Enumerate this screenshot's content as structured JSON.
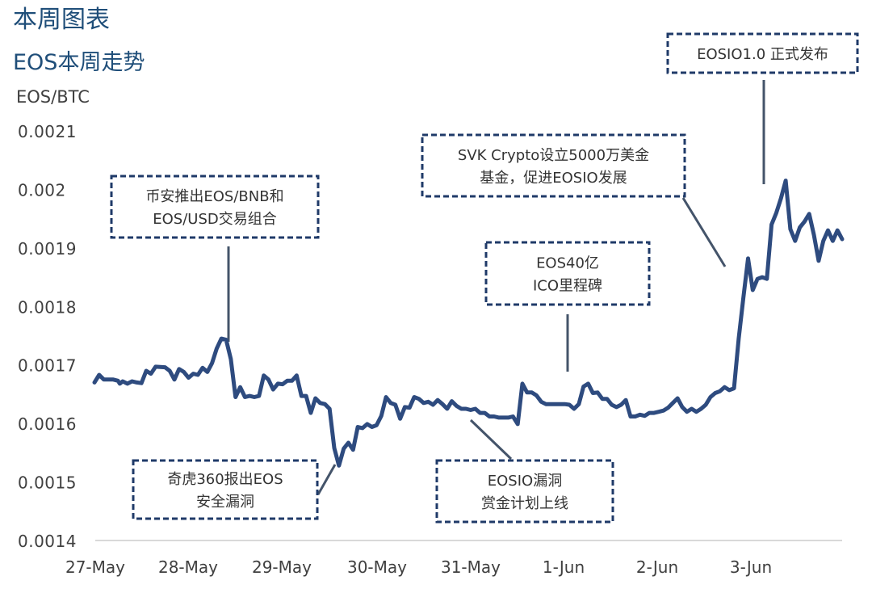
{
  "page": {
    "title": "本周图表",
    "subtitle": "EOS本周走势"
  },
  "chart_data": {
    "type": "line",
    "title": "EOS本周走势",
    "ylabel": "EOS/BTC",
    "xlabel": "",
    "ylim": [
      0.0014,
      0.0021
    ],
    "ytick_labels": [
      "0.0014",
      "0.0015",
      "0.0016",
      "0.0017",
      "0.0018",
      "0.0019",
      "0.002",
      "0.0021"
    ],
    "yticks": [
      0.0014,
      0.0015,
      0.0016,
      0.0017,
      0.0018,
      0.0019,
      0.002,
      0.0021
    ],
    "x_tick_labels": [
      "27-May",
      "28-May",
      "29-May",
      "30-May",
      "31-May",
      "1-Jun",
      "2-Jun",
      "3-Jun"
    ],
    "xlim": [
      27.0,
      34.95
    ],
    "x_unit": "day (27 = 27-May, 32 = 1-Jun)",
    "grid": false,
    "series": [
      {
        "color": "#2e4b7f",
        "points": [
          [
            27.0,
            0.00167
          ],
          [
            27.05,
            0.001683
          ],
          [
            27.1,
            0.001675
          ],
          [
            27.2,
            0.001675
          ],
          [
            27.25,
            0.001673
          ],
          [
            27.27,
            0.001668
          ],
          [
            27.3,
            0.001672
          ],
          [
            27.35,
            0.001668
          ],
          [
            27.4,
            0.001672
          ],
          [
            27.45,
            0.00167
          ],
          [
            27.5,
            0.001669
          ],
          [
            27.55,
            0.00169
          ],
          [
            27.6,
            0.001685
          ],
          [
            27.65,
            0.001697
          ],
          [
            27.75,
            0.001696
          ],
          [
            27.8,
            0.00169
          ],
          [
            27.85,
            0.001675
          ],
          [
            27.9,
            0.001693
          ],
          [
            27.95,
            0.001688
          ],
          [
            28.0,
            0.001678
          ],
          [
            28.05,
            0.001685
          ],
          [
            28.1,
            0.001683
          ],
          [
            28.15,
            0.001695
          ],
          [
            28.2,
            0.001688
          ],
          [
            28.25,
            0.001703
          ],
          [
            28.3,
            0.001728
          ],
          [
            28.35,
            0.001745
          ],
          [
            28.4,
            0.001743
          ],
          [
            28.45,
            0.00171
          ],
          [
            28.5,
            0.001645
          ],
          [
            28.55,
            0.001662
          ],
          [
            28.6,
            0.001645
          ],
          [
            28.65,
            0.001647
          ],
          [
            28.7,
            0.001645
          ],
          [
            28.75,
            0.001647
          ],
          [
            28.8,
            0.001682
          ],
          [
            28.85,
            0.001675
          ],
          [
            28.9,
            0.001658
          ],
          [
            28.95,
            0.001668
          ],
          [
            29.0,
            0.001667
          ],
          [
            29.05,
            0.001673
          ],
          [
            29.1,
            0.001673
          ],
          [
            29.15,
            0.001682
          ],
          [
            29.2,
            0.001647
          ],
          [
            29.25,
            0.001647
          ],
          [
            29.3,
            0.001618
          ],
          [
            29.35,
            0.001643
          ],
          [
            29.4,
            0.001635
          ],
          [
            29.45,
            0.001633
          ],
          [
            29.5,
            0.001625
          ],
          [
            29.55,
            0.001558
          ],
          [
            29.6,
            0.001528
          ],
          [
            29.65,
            0.001557
          ],
          [
            29.7,
            0.001567
          ],
          [
            29.75,
            0.001555
          ],
          [
            29.8,
            0.001594
          ],
          [
            29.85,
            0.001592
          ],
          [
            29.9,
            0.001599
          ],
          [
            29.95,
            0.001594
          ],
          [
            30.0,
            0.001597
          ],
          [
            30.05,
            0.001613
          ],
          [
            30.1,
            0.001645
          ],
          [
            30.15,
            0.001635
          ],
          [
            30.2,
            0.001632
          ],
          [
            30.25,
            0.001608
          ],
          [
            30.3,
            0.001628
          ],
          [
            30.35,
            0.001627
          ],
          [
            30.4,
            0.001645
          ],
          [
            30.45,
            0.001642
          ],
          [
            30.5,
            0.001635
          ],
          [
            30.55,
            0.001637
          ],
          [
            30.6,
            0.001632
          ],
          [
            30.65,
            0.00164
          ],
          [
            30.7,
            0.001633
          ],
          [
            30.75,
            0.001625
          ],
          [
            30.8,
            0.001638
          ],
          [
            30.85,
            0.00163
          ],
          [
            30.9,
            0.001625
          ],
          [
            30.95,
            0.001625
          ],
          [
            31.0,
            0.001623
          ],
          [
            31.05,
            0.001625
          ],
          [
            31.1,
            0.001618
          ],
          [
            31.15,
            0.001618
          ],
          [
            31.2,
            0.001612
          ],
          [
            31.25,
            0.001612
          ],
          [
            31.3,
            0.00161
          ],
          [
            31.35,
            0.00161
          ],
          [
            31.4,
            0.00161
          ],
          [
            31.45,
            0.001612
          ],
          [
            31.5,
            0.001599
          ],
          [
            31.55,
            0.001668
          ],
          [
            31.6,
            0.001653
          ],
          [
            31.65,
            0.001653
          ],
          [
            31.7,
            0.001648
          ],
          [
            31.75,
            0.001637
          ],
          [
            31.8,
            0.001633
          ],
          [
            31.85,
            0.001633
          ],
          [
            31.9,
            0.001633
          ],
          [
            31.95,
            0.001633
          ],
          [
            32.0,
            0.001633
          ],
          [
            32.05,
            0.001632
          ],
          [
            32.1,
            0.001625
          ],
          [
            32.15,
            0.001633
          ],
          [
            32.2,
            0.001663
          ],
          [
            32.25,
            0.001668
          ],
          [
            32.3,
            0.001652
          ],
          [
            32.35,
            0.001653
          ],
          [
            32.4,
            0.001642
          ],
          [
            32.45,
            0.001642
          ],
          [
            32.5,
            0.001632
          ],
          [
            32.55,
            0.001628
          ],
          [
            32.6,
            0.001632
          ],
          [
            32.65,
            0.00164
          ],
          [
            32.7,
            0.001612
          ],
          [
            32.75,
            0.001612
          ],
          [
            32.8,
            0.001615
          ],
          [
            32.85,
            0.001613
          ],
          [
            32.9,
            0.001618
          ],
          [
            32.95,
            0.001618
          ],
          [
            33.0,
            0.00162
          ],
          [
            33.05,
            0.001622
          ],
          [
            33.1,
            0.001627
          ],
          [
            33.15,
            0.001635
          ],
          [
            33.2,
            0.001643
          ],
          [
            33.25,
            0.001628
          ],
          [
            33.3,
            0.00162
          ],
          [
            33.35,
            0.001625
          ],
          [
            33.4,
            0.00162
          ],
          [
            33.45,
            0.001625
          ],
          [
            33.5,
            0.001632
          ],
          [
            33.55,
            0.001645
          ],
          [
            33.6,
            0.001652
          ],
          [
            33.65,
            0.001655
          ],
          [
            33.7,
            0.001662
          ],
          [
            33.75,
            0.001657
          ],
          [
            33.8,
            0.00166
          ],
          [
            33.85,
            0.001745
          ],
          [
            33.9,
            0.001815
          ],
          [
            33.95,
            0.001882
          ],
          [
            34.0,
            0.001828
          ],
          [
            34.05,
            0.001847
          ],
          [
            34.1,
            0.00185
          ],
          [
            34.15,
            0.001847
          ],
          [
            34.2,
            0.00194
          ],
          [
            34.25,
            0.00196
          ],
          [
            34.3,
            0.001985
          ],
          [
            34.35,
            0.002015
          ],
          [
            34.4,
            0.001932
          ],
          [
            34.45,
            0.001912
          ],
          [
            34.5,
            0.001935
          ],
          [
            34.55,
            0.001945
          ],
          [
            34.6,
            0.001958
          ],
          [
            34.65,
            0.001922
          ],
          [
            34.7,
            0.001878
          ],
          [
            34.75,
            0.001912
          ],
          [
            34.8,
            0.00193
          ],
          [
            34.85,
            0.001912
          ],
          [
            34.9,
            0.00193
          ],
          [
            34.95,
            0.001915
          ]
        ]
      }
    ],
    "annotations": [
      {
        "id": "binance",
        "lines": [
          "币安推出EOS/BNB和",
          "EOS/USD交易组合"
        ]
      },
      {
        "id": "qihoo",
        "lines": [
          "奇虎360报出EOS",
          "安全漏洞"
        ]
      },
      {
        "id": "bounty",
        "lines": [
          "EOSIO漏洞",
          "赏金计划上线"
        ]
      },
      {
        "id": "ico",
        "lines": [
          "EOS40亿",
          "ICO里程碑"
        ]
      },
      {
        "id": "svk",
        "lines": [
          "SVK Crypto设立5000万美金",
          "基金，促进EOSIO发展"
        ]
      },
      {
        "id": "eosio",
        "lines": [
          "EOSIO1.0 正式发布"
        ]
      }
    ]
  }
}
